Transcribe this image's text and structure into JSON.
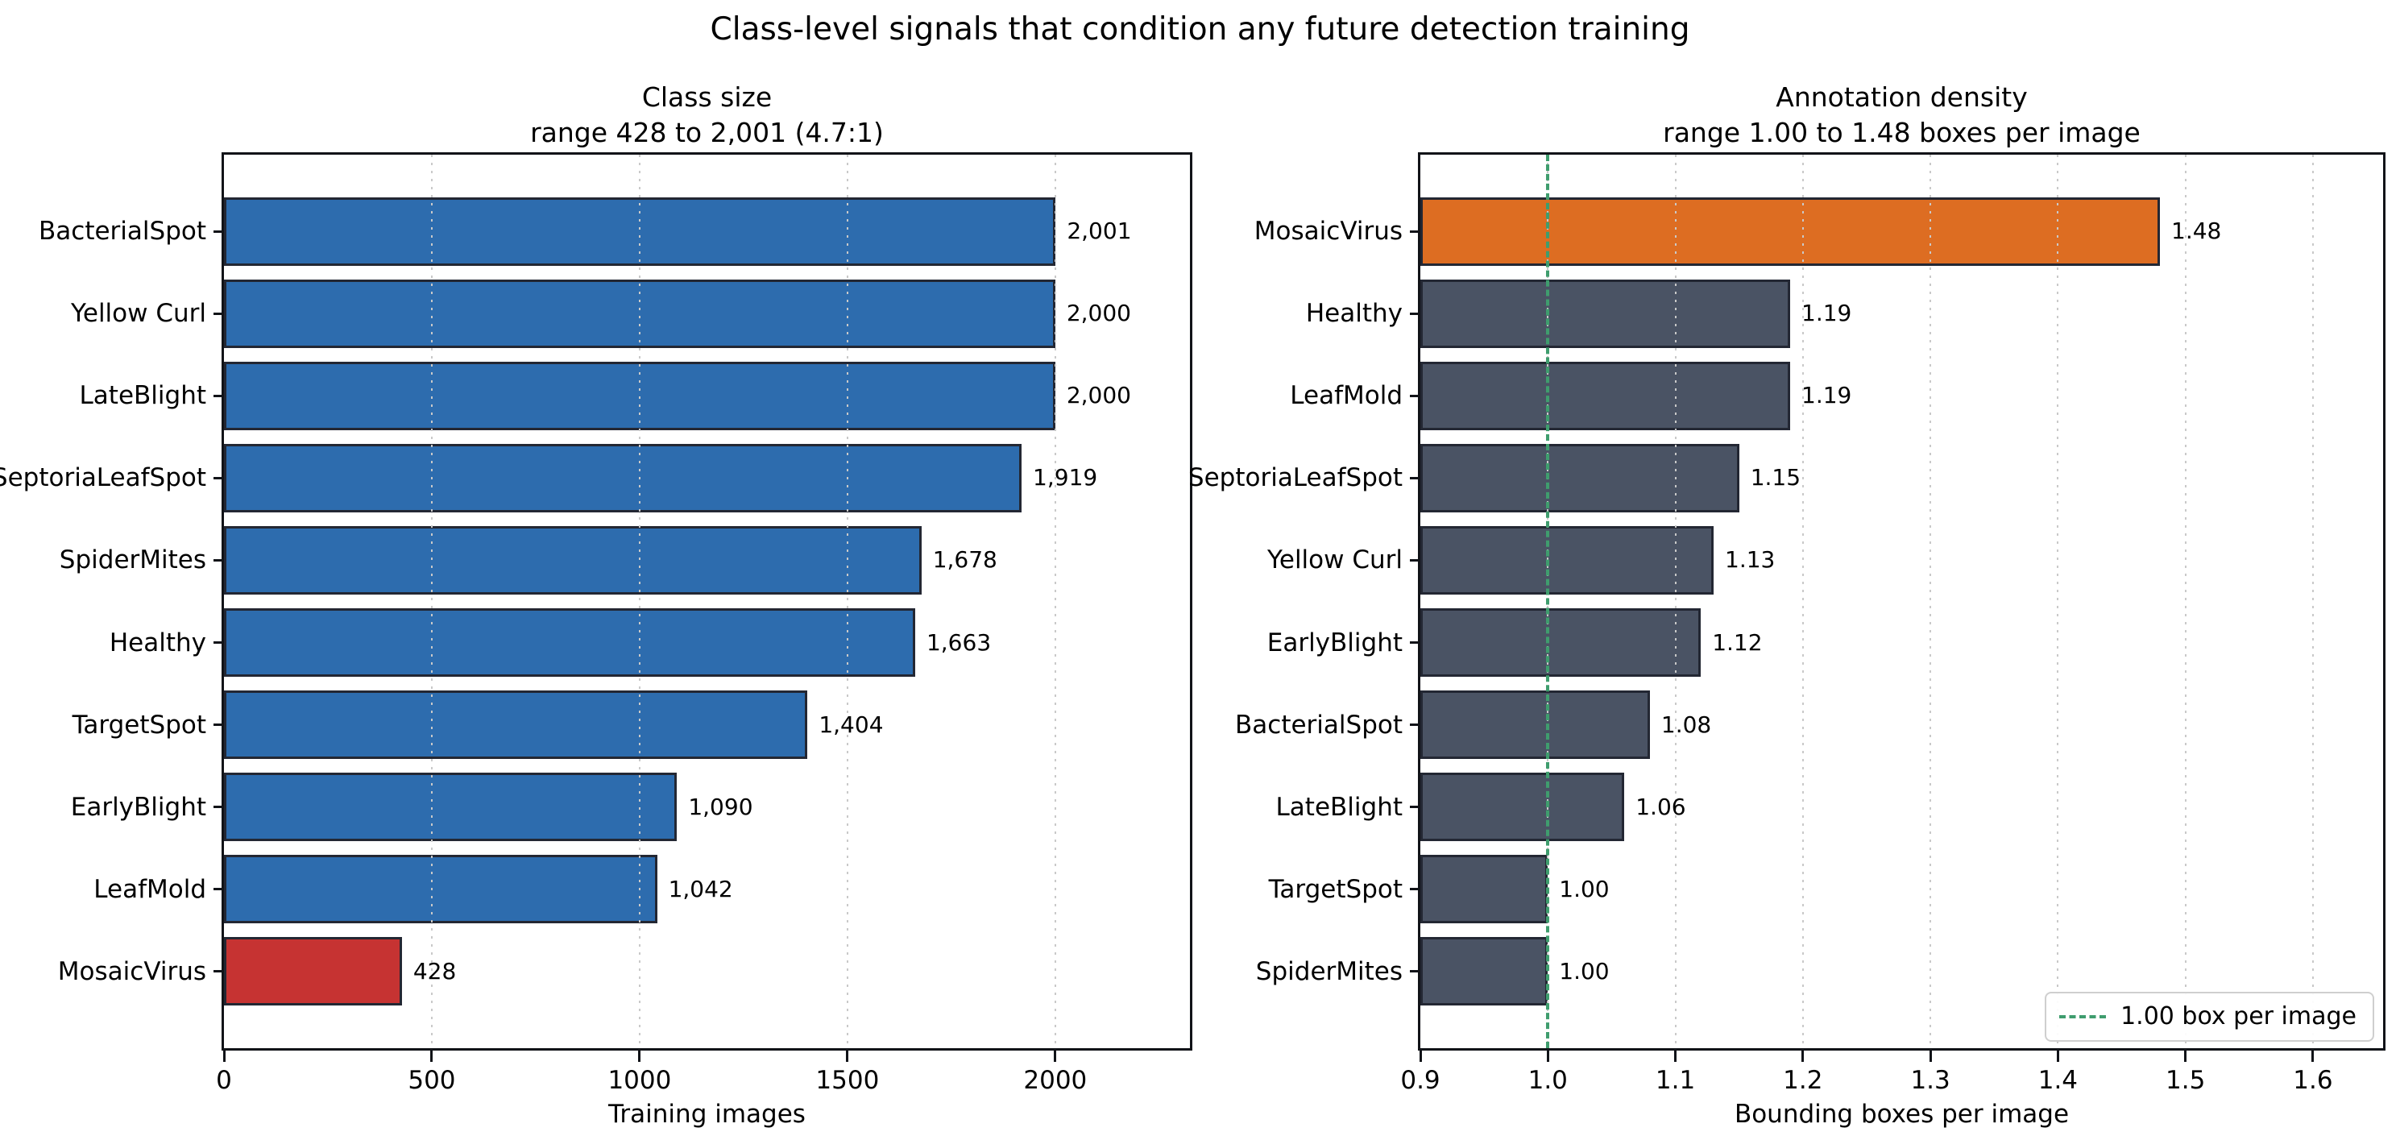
{
  "figure": {
    "suptitle": "Class-level signals that condition any future detection training"
  },
  "chart_data": [
    {
      "type": "bar",
      "orientation": "horizontal",
      "title": "Class size",
      "subtitle": "range 428 to 2,001 (4.7:1)",
      "xlabel": "Training images",
      "categories": [
        "BacterialSpot",
        "Yellow Curl",
        "LateBlight",
        "SeptoriaLeafSpot",
        "SpiderMites",
        "Healthy",
        "TargetSpot",
        "EarlyBlight",
        "LeafMold",
        "MosaicVirus"
      ],
      "values": [
        2001,
        2000,
        2000,
        1919,
        1678,
        1663,
        1404,
        1090,
        1042,
        428
      ],
      "value_labels": [
        "2,001",
        "2,000",
        "2,000",
        "1,919",
        "1,678",
        "1,663",
        "1,404",
        "1,090",
        "1,042",
        "428"
      ],
      "xlim": [
        0,
        2324
      ],
      "xticks": [
        0,
        500,
        1000,
        1500,
        2000
      ],
      "xtick_labels": [
        "0",
        "500",
        "1000",
        "1500",
        "2000"
      ],
      "grid": "dotted-vertical",
      "bar_color_default": "#2d6cae",
      "highlight": {
        "index": 9,
        "color": "#c63332"
      }
    },
    {
      "type": "bar",
      "orientation": "horizontal",
      "title": "Annotation density",
      "subtitle": "range 1.00 to 1.48 boxes per image",
      "xlabel": "Bounding boxes per image",
      "categories": [
        "MosaicVirus",
        "Healthy",
        "LeafMold",
        "SeptoriaLeafSpot",
        "Yellow Curl",
        "EarlyBlight",
        "BacterialSpot",
        "LateBlight",
        "TargetSpot",
        "SpiderMites"
      ],
      "values": [
        1.48,
        1.19,
        1.19,
        1.15,
        1.13,
        1.12,
        1.08,
        1.06,
        1.0,
        1.0
      ],
      "value_labels": [
        "1.48",
        "1.19",
        "1.19",
        "1.15",
        "1.13",
        "1.12",
        "1.08",
        "1.06",
        "1.00",
        "1.00"
      ],
      "xlim": [
        0.9,
        1.655
      ],
      "xticks": [
        0.9,
        1.0,
        1.1,
        1.2,
        1.3,
        1.4,
        1.5,
        1.6
      ],
      "xtick_labels": [
        "0.9",
        "1.0",
        "1.1",
        "1.2",
        "1.3",
        "1.4",
        "1.5",
        "1.6"
      ],
      "grid": "dotted-vertical",
      "bar_color_default": "#4a5364",
      "highlight": {
        "index": 0,
        "color": "#dd6d22"
      },
      "refline": {
        "value": 1.0,
        "color": "#3f9d6e"
      },
      "legend": {
        "label": "1.00 box per image",
        "position": "lower right"
      }
    }
  ]
}
